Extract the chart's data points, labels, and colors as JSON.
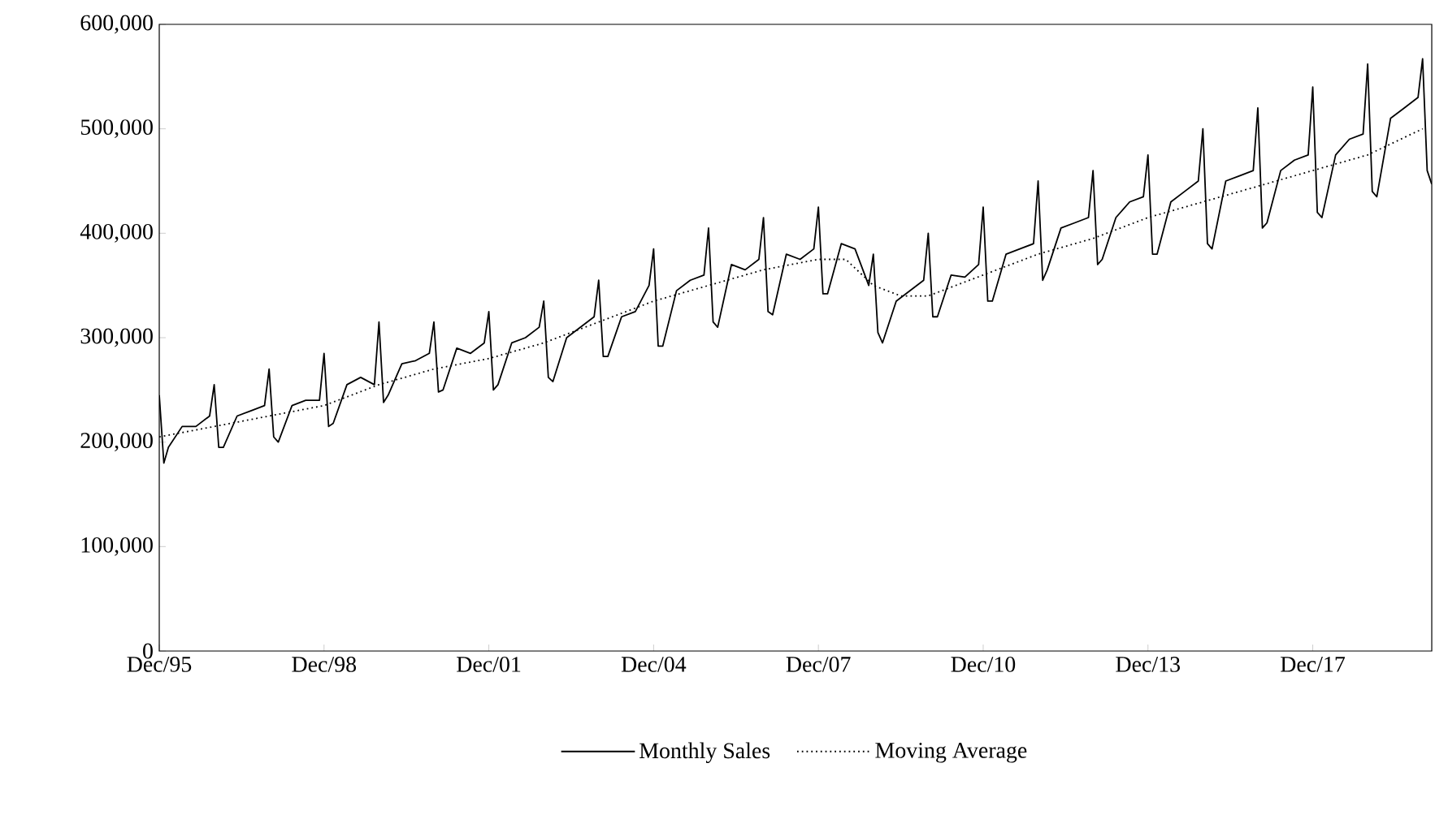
{
  "chart_data": {
    "type": "line",
    "xlim": [
      "1995-12",
      "2019-02"
    ],
    "xticks": [
      {
        "value": "1995-12",
        "label": "Dec/95"
      },
      {
        "value": "1998-12",
        "label": "Dec/98"
      },
      {
        "value": "2001-12",
        "label": "Dec/01"
      },
      {
        "value": "2004-12",
        "label": "Dec/04"
      },
      {
        "value": "2007-12",
        "label": "Dec/07"
      },
      {
        "value": "2010-12",
        "label": "Dec/10"
      },
      {
        "value": "2013-12",
        "label": "Dec/13"
      },
      {
        "value": "2016-12",
        "label": "Dec/17"
      }
    ],
    "ylim": [
      0,
      600000
    ],
    "yticks": [
      {
        "value": 0,
        "label": "0"
      },
      {
        "value": 100000,
        "label": "100,000"
      },
      {
        "value": 200000,
        "label": "200,000"
      },
      {
        "value": 300000,
        "label": "300,000"
      },
      {
        "value": 400000,
        "label": "400,000"
      },
      {
        "value": 500000,
        "label": "500,000"
      },
      {
        "value": 600000,
        "label": "600,000"
      }
    ],
    "grid": false,
    "legend": "bottom",
    "series": [
      {
        "name": "Monthly Sales",
        "color": "#000000",
        "line_style": "solid",
        "x": [
          "1995-12",
          "1996-01",
          "1996-02",
          "1996-05",
          "1996-08",
          "1996-11",
          "1996-12",
          "1997-01",
          "1997-02",
          "1997-05",
          "1997-08",
          "1997-11",
          "1997-12",
          "1998-01",
          "1998-02",
          "1998-05",
          "1998-08",
          "1998-11",
          "1998-12",
          "1999-01",
          "1999-02",
          "1999-05",
          "1999-08",
          "1999-11",
          "1999-12",
          "2000-01",
          "2000-02",
          "2000-05",
          "2000-08",
          "2000-11",
          "2000-12",
          "2001-01",
          "2001-02",
          "2001-05",
          "2001-08",
          "2001-11",
          "2001-12",
          "2002-01",
          "2002-02",
          "2002-05",
          "2002-08",
          "2002-11",
          "2002-12",
          "2003-01",
          "2003-02",
          "2003-05",
          "2003-08",
          "2003-11",
          "2003-12",
          "2004-01",
          "2004-02",
          "2004-05",
          "2004-08",
          "2004-11",
          "2004-12",
          "2005-01",
          "2005-02",
          "2005-05",
          "2005-08",
          "2005-11",
          "2005-12",
          "2006-01",
          "2006-02",
          "2006-05",
          "2006-08",
          "2006-11",
          "2006-12",
          "2007-01",
          "2007-02",
          "2007-05",
          "2007-08",
          "2007-11",
          "2007-12",
          "2008-01",
          "2008-02",
          "2008-05",
          "2008-08",
          "2008-11",
          "2008-12",
          "2009-01",
          "2009-02",
          "2009-05",
          "2009-08",
          "2009-11",
          "2009-12",
          "2010-01",
          "2010-02",
          "2010-05",
          "2010-08",
          "2010-11",
          "2010-12",
          "2011-01",
          "2011-02",
          "2011-05",
          "2011-08",
          "2011-11",
          "2011-12",
          "2012-01",
          "2012-02",
          "2012-05",
          "2012-08",
          "2012-11",
          "2012-12",
          "2013-01",
          "2013-02",
          "2013-05",
          "2013-08",
          "2013-11",
          "2013-12",
          "2014-01",
          "2014-02",
          "2014-05",
          "2014-08",
          "2014-11",
          "2014-12",
          "2015-01",
          "2015-02",
          "2015-05",
          "2015-08",
          "2015-11",
          "2015-12",
          "2016-01",
          "2016-02",
          "2016-05",
          "2016-08",
          "2016-11",
          "2016-12",
          "2017-01",
          "2017-02",
          "2017-05",
          "2017-08",
          "2017-11",
          "2017-12",
          "2018-01",
          "2018-02",
          "2018-05",
          "2018-08",
          "2018-11",
          "2018-12",
          "2019-01",
          "2019-02"
        ],
        "values": [
          245000,
          180000,
          195000,
          215000,
          215000,
          225000,
          255000,
          195000,
          195000,
          225000,
          230000,
          235000,
          270000,
          205000,
          200000,
          235000,
          240000,
          240000,
          285000,
          215000,
          218000,
          255000,
          262000,
          255000,
          315000,
          238000,
          245000,
          275000,
          278000,
          285000,
          315000,
          248000,
          250000,
          290000,
          285000,
          295000,
          325000,
          250000,
          255000,
          295000,
          300000,
          310000,
          335000,
          262000,
          258000,
          300000,
          310000,
          320000,
          355000,
          282000,
          282000,
          320000,
          325000,
          350000,
          385000,
          292000,
          292000,
          345000,
          355000,
          360000,
          405000,
          315000,
          310000,
          370000,
          365000,
          375000,
          415000,
          325000,
          322000,
          380000,
          375000,
          385000,
          425000,
          342000,
          342000,
          390000,
          385000,
          350000,
          380000,
          305000,
          295000,
          335000,
          345000,
          355000,
          400000,
          320000,
          320000,
          360000,
          358000,
          370000,
          425000,
          335000,
          335000,
          380000,
          385000,
          390000,
          450000,
          355000,
          365000,
          405000,
          410000,
          415000,
          460000,
          370000,
          375000,
          415000,
          430000,
          435000,
          475000,
          380000,
          380000,
          430000,
          440000,
          450000,
          500000,
          390000,
          385000,
          450000,
          455000,
          460000,
          520000,
          405000,
          410000,
          460000,
          470000,
          475000,
          540000,
          420000,
          415000,
          475000,
          490000,
          495000,
          562000,
          440000,
          435000,
          510000,
          520000,
          530000,
          567000,
          460000,
          447000
        ]
      },
      {
        "name": "Moving Average",
        "color": "#000000",
        "line_style": "dotted",
        "x": [
          "1995-12",
          "1996-12",
          "1997-12",
          "1998-12",
          "1999-12",
          "2000-12",
          "2001-12",
          "2002-12",
          "2003-12",
          "2004-12",
          "2005-12",
          "2006-12",
          "2007-12",
          "2008-06",
          "2008-12",
          "2009-06",
          "2009-12",
          "2010-12",
          "2011-12",
          "2012-12",
          "2013-12",
          "2014-12",
          "2015-12",
          "2016-12",
          "2017-12",
          "2018-12"
        ],
        "values": [
          205000,
          215000,
          225000,
          235000,
          255000,
          270000,
          280000,
          295000,
          315000,
          335000,
          350000,
          365000,
          375000,
          375000,
          350000,
          340000,
          340000,
          360000,
          380000,
          395000,
          415000,
          430000,
          445000,
          460000,
          475000,
          500000
        ]
      }
    ]
  }
}
